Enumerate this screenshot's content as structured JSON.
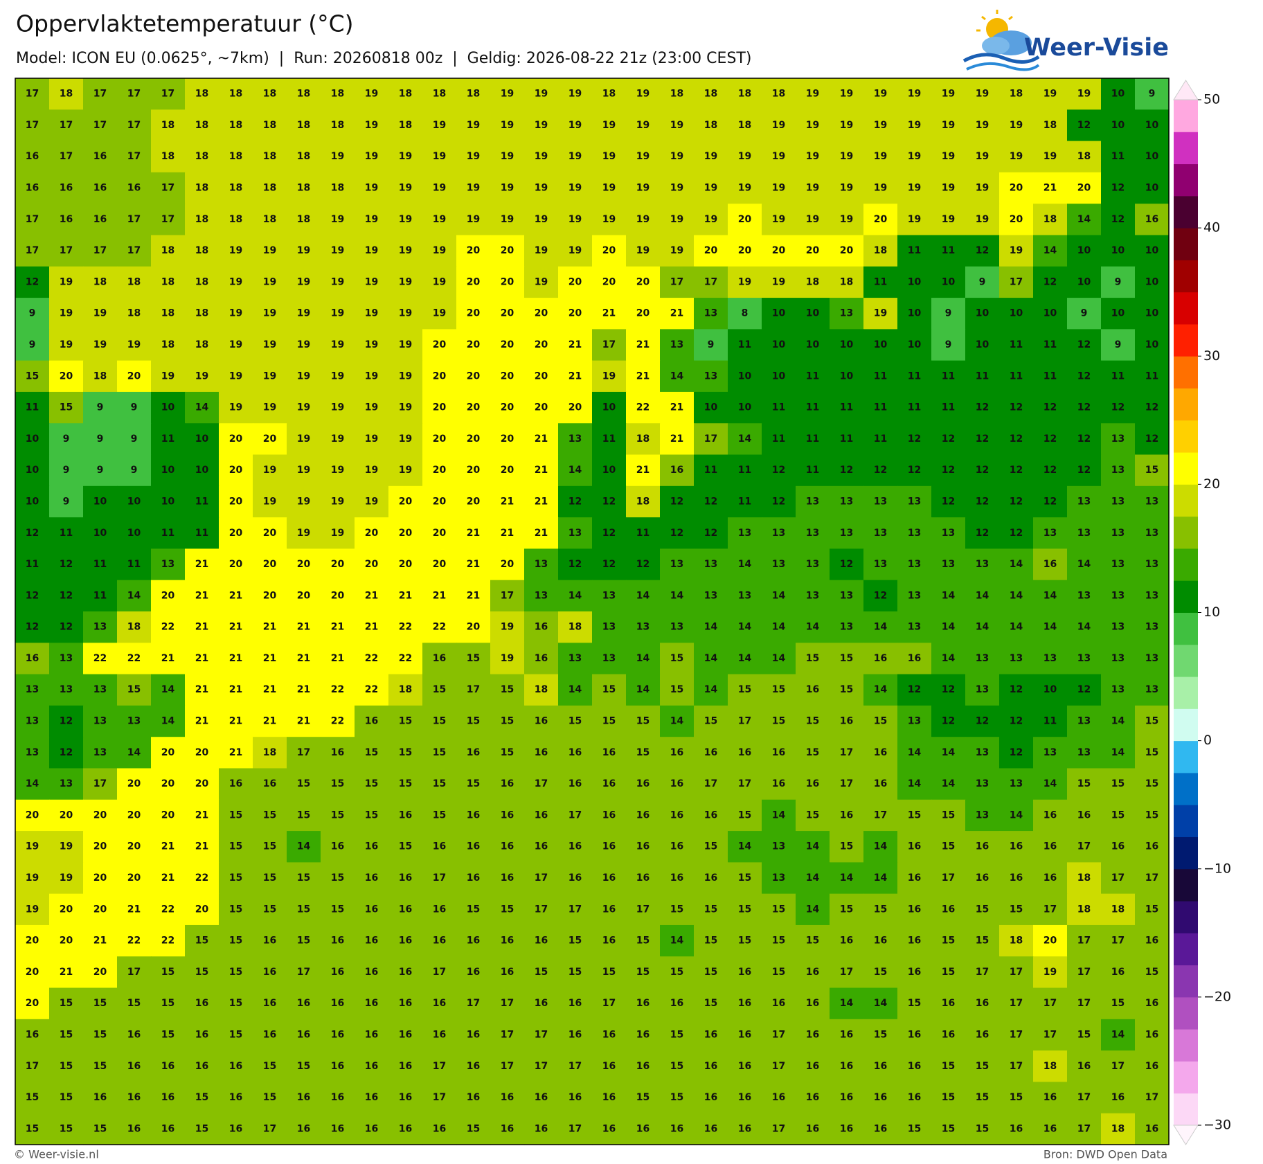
{
  "header": {
    "title": "Oppervlaktetemperatuur (°C)",
    "subtitle": "Model: ICON EU (0.0625°, ~7km)  |  Run: 20260818 00z  |  Geldig: 2026-08-22 21z (23:00 CEST)"
  },
  "logo": "Weer-Visie",
  "map": {
    "grid": [
      [
        17,
        18,
        17,
        17,
        17,
        18,
        18,
        18,
        18,
        18,
        19,
        18,
        18,
        18,
        19,
        19,
        19,
        18,
        19,
        18,
        18,
        18,
        18,
        19,
        19,
        19,
        19,
        19,
        19,
        18,
        19,
        19,
        10,
        9
      ],
      [
        17,
        17,
        17,
        17,
        18,
        18,
        18,
        18,
        18,
        18,
        19,
        18,
        19,
        19,
        19,
        19,
        19,
        19,
        19,
        19,
        18,
        18,
        19,
        19,
        19,
        19,
        19,
        19,
        19,
        19,
        18,
        12,
        10,
        10
      ],
      [
        16,
        17,
        16,
        17,
        18,
        18,
        18,
        18,
        18,
        19,
        19,
        19,
        19,
        19,
        19,
        19,
        19,
        19,
        19,
        19,
        19,
        19,
        19,
        19,
        19,
        19,
        19,
        19,
        19,
        19,
        19,
        18,
        11,
        10
      ],
      [
        16,
        16,
        16,
        16,
        17,
        18,
        18,
        18,
        18,
        18,
        19,
        19,
        19,
        19,
        19,
        19,
        19,
        19,
        19,
        19,
        19,
        19,
        19,
        19,
        19,
        19,
        19,
        19,
        19,
        20,
        21,
        20,
        12,
        10
      ],
      [
        17,
        16,
        16,
        17,
        17,
        18,
        18,
        18,
        18,
        19,
        19,
        19,
        19,
        19,
        19,
        19,
        19,
        19,
        19,
        19,
        19,
        20,
        19,
        19,
        19,
        20,
        19,
        19,
        19,
        20,
        18,
        14,
        12,
        16
      ],
      [
        17,
        17,
        17,
        17,
        18,
        18,
        19,
        19,
        19,
        19,
        19,
        19,
        19,
        20,
        20,
        19,
        19,
        20,
        19,
        19,
        20,
        20,
        20,
        20,
        20,
        18,
        11,
        11,
        12,
        19,
        14,
        10,
        10,
        10
      ],
      [
        12,
        19,
        18,
        18,
        18,
        18,
        19,
        19,
        19,
        19,
        19,
        19,
        19,
        20,
        20,
        19,
        20,
        20,
        20,
        17,
        17,
        19,
        19,
        18,
        18,
        11,
        10,
        10,
        9,
        17,
        12,
        10,
        9,
        10
      ],
      [
        9,
        19,
        19,
        18,
        18,
        18,
        19,
        19,
        19,
        19,
        19,
        19,
        19,
        20,
        20,
        20,
        20,
        21,
        20,
        21,
        13,
        8,
        10,
        10,
        13,
        19,
        10,
        9,
        10,
        10,
        10,
        9,
        10,
        10
      ],
      [
        9,
        19,
        19,
        19,
        18,
        18,
        19,
        19,
        19,
        19,
        19,
        19,
        20,
        20,
        20,
        20,
        21,
        17,
        21,
        13,
        9,
        11,
        10,
        10,
        10,
        10,
        10,
        9,
        10,
        11,
        11,
        12,
        9,
        10
      ],
      [
        15,
        20,
        18,
        20,
        19,
        19,
        19,
        19,
        19,
        19,
        19,
        19,
        20,
        20,
        20,
        20,
        21,
        19,
        21,
        14,
        13,
        10,
        10,
        11,
        10,
        11,
        11,
        11,
        11,
        11,
        11,
        12,
        11,
        11
      ],
      [
        11,
        15,
        9,
        9,
        10,
        14,
        19,
        19,
        19,
        19,
        19,
        19,
        20,
        20,
        20,
        20,
        20,
        10,
        22,
        21,
        10,
        10,
        11,
        11,
        11,
        11,
        11,
        11,
        12,
        12,
        12,
        12,
        12,
        12
      ],
      [
        10,
        9,
        9,
        9,
        11,
        10,
        20,
        20,
        19,
        19,
        19,
        19,
        20,
        20,
        20,
        21,
        13,
        11,
        18,
        21,
        17,
        14,
        11,
        11,
        11,
        11,
        12,
        12,
        12,
        12,
        12,
        12,
        13,
        12
      ],
      [
        10,
        9,
        9,
        9,
        10,
        10,
        20,
        19,
        19,
        19,
        19,
        19,
        20,
        20,
        20,
        21,
        14,
        10,
        21,
        16,
        11,
        11,
        12,
        11,
        12,
        12,
        12,
        12,
        12,
        12,
        12,
        12,
        13,
        15
      ],
      [
        10,
        9,
        10,
        10,
        10,
        11,
        20,
        19,
        19,
        19,
        19,
        20,
        20,
        20,
        21,
        21,
        12,
        12,
        18,
        12,
        12,
        11,
        12,
        13,
        13,
        13,
        13,
        12,
        12,
        12,
        12,
        13,
        13,
        13
      ],
      [
        12,
        11,
        10,
        10,
        11,
        11,
        20,
        20,
        19,
        19,
        20,
        20,
        20,
        21,
        21,
        21,
        13,
        12,
        11,
        12,
        12,
        13,
        13,
        13,
        13,
        13,
        13,
        13,
        12,
        12,
        13,
        13,
        13,
        13
      ],
      [
        11,
        12,
        11,
        11,
        13,
        21,
        20,
        20,
        20,
        20,
        20,
        20,
        20,
        21,
        20,
        13,
        12,
        12,
        12,
        13,
        13,
        14,
        13,
        13,
        12,
        13,
        13,
        13,
        13,
        14,
        16,
        14,
        13,
        13
      ],
      [
        12,
        12,
        11,
        14,
        20,
        21,
        21,
        20,
        20,
        20,
        21,
        21,
        21,
        21,
        17,
        13,
        14,
        13,
        14,
        14,
        13,
        13,
        14,
        13,
        13,
        12,
        13,
        14,
        14,
        14,
        14,
        13,
        13,
        13
      ],
      [
        12,
        12,
        13,
        18,
        22,
        21,
        21,
        21,
        21,
        21,
        21,
        22,
        22,
        20,
        19,
        16,
        18,
        13,
        13,
        13,
        14,
        14,
        14,
        14,
        13,
        14,
        13,
        14,
        14,
        14,
        14,
        14,
        13,
        13
      ],
      [
        16,
        13,
        22,
        22,
        21,
        21,
        21,
        21,
        21,
        21,
        22,
        22,
        16,
        15,
        19,
        16,
        13,
        13,
        14,
        15,
        14,
        14,
        14,
        15,
        15,
        16,
        16,
        14,
        13,
        13,
        13,
        13,
        13,
        13
      ],
      [
        13,
        13,
        13,
        15,
        14,
        21,
        21,
        21,
        21,
        22,
        22,
        18,
        15,
        17,
        15,
        18,
        14,
        15,
        14,
        15,
        14,
        15,
        15,
        16,
        15,
        14,
        12,
        12,
        13,
        12,
        10,
        12,
        13,
        13
      ],
      [
        13,
        12,
        13,
        13,
        14,
        21,
        21,
        21,
        21,
        22,
        16,
        15,
        15,
        15,
        15,
        16,
        15,
        15,
        15,
        14,
        15,
        17,
        15,
        15,
        16,
        15,
        13,
        12,
        12,
        12,
        11,
        13,
        14,
        15
      ],
      [
        13,
        12,
        13,
        14,
        20,
        20,
        21,
        18,
        17,
        16,
        15,
        15,
        15,
        16,
        15,
        16,
        16,
        16,
        15,
        16,
        16,
        16,
        16,
        15,
        17,
        16,
        14,
        14,
        13,
        12,
        13,
        13,
        14,
        15
      ],
      [
        14,
        13,
        17,
        20,
        20,
        20,
        16,
        16,
        15,
        15,
        15,
        15,
        15,
        15,
        16,
        17,
        16,
        16,
        16,
        16,
        17,
        17,
        16,
        16,
        17,
        16,
        14,
        14,
        13,
        13,
        14,
        15,
        15,
        15
      ],
      [
        20,
        20,
        20,
        20,
        20,
        21,
        15,
        15,
        15,
        15,
        15,
        16,
        15,
        16,
        16,
        16,
        17,
        16,
        16,
        16,
        16,
        15,
        14,
        15,
        16,
        17,
        15,
        15,
        13,
        14,
        16,
        16,
        15,
        15
      ],
      [
        19,
        19,
        20,
        20,
        21,
        21,
        15,
        15,
        14,
        16,
        16,
        15,
        16,
        16,
        16,
        16,
        16,
        16,
        16,
        16,
        15,
        14,
        13,
        14,
        15,
        14,
        16,
        15,
        16,
        16,
        16,
        17,
        16,
        16
      ],
      [
        19,
        19,
        20,
        20,
        21,
        22,
        15,
        15,
        15,
        15,
        16,
        16,
        17,
        16,
        16,
        17,
        16,
        16,
        16,
        16,
        16,
        15,
        13,
        14,
        14,
        14,
        16,
        17,
        16,
        16,
        16,
        18,
        17,
        17
      ],
      [
        19,
        20,
        20,
        21,
        22,
        20,
        15,
        15,
        15,
        15,
        16,
        16,
        16,
        15,
        15,
        17,
        17,
        16,
        17,
        15,
        15,
        15,
        15,
        14,
        15,
        15,
        16,
        16,
        15,
        15,
        17,
        18,
        18,
        15
      ],
      [
        20,
        20,
        21,
        22,
        22,
        15,
        15,
        16,
        15,
        16,
        16,
        16,
        16,
        16,
        16,
        16,
        15,
        16,
        15,
        14,
        15,
        15,
        15,
        15,
        16,
        16,
        16,
        15,
        15,
        18,
        20,
        17,
        17,
        16
      ],
      [
        20,
        21,
        20,
        17,
        15,
        15,
        15,
        16,
        17,
        16,
        16,
        16,
        17,
        16,
        16,
        15,
        15,
        15,
        15,
        15,
        15,
        16,
        15,
        16,
        17,
        15,
        16,
        15,
        17,
        17,
        19,
        17,
        16,
        15
      ],
      [
        20,
        15,
        15,
        15,
        15,
        16,
        15,
        16,
        16,
        16,
        16,
        16,
        16,
        17,
        17,
        16,
        16,
        17,
        16,
        16,
        15,
        16,
        16,
        16,
        14,
        14,
        15,
        16,
        16,
        17,
        17,
        17,
        15,
        16
      ],
      [
        16,
        15,
        15,
        16,
        15,
        16,
        15,
        16,
        16,
        16,
        16,
        16,
        16,
        16,
        17,
        17,
        16,
        16,
        16,
        15,
        16,
        16,
        17,
        16,
        16,
        15,
        16,
        16,
        16,
        17,
        17,
        15,
        14,
        16
      ],
      [
        17,
        15,
        15,
        16,
        16,
        16,
        16,
        15,
        15,
        16,
        16,
        16,
        17,
        16,
        17,
        17,
        17,
        16,
        16,
        15,
        16,
        16,
        17,
        16,
        16,
        16,
        16,
        15,
        15,
        17,
        18,
        16,
        17,
        16
      ],
      [
        15,
        15,
        16,
        16,
        16,
        15,
        16,
        15,
        16,
        16,
        16,
        16,
        17,
        16,
        16,
        16,
        16,
        16,
        15,
        15,
        16,
        16,
        16,
        16,
        16,
        16,
        16,
        15,
        15,
        15,
        16,
        17,
        16,
        17
      ],
      [
        15,
        15,
        15,
        16,
        16,
        15,
        16,
        17,
        16,
        16,
        16,
        16,
        16,
        15,
        16,
        16,
        17,
        16,
        16,
        16,
        16,
        16,
        17,
        16,
        16,
        16,
        15,
        15,
        15,
        16,
        16,
        17,
        18,
        16
      ]
    ]
  },
  "colorbar": {
    "lim": [
      -30,
      50
    ],
    "ticks": [
      {
        "value": -30,
        "label": "−30"
      },
      {
        "value": -20,
        "label": "−20"
      },
      {
        "value": -10,
        "label": "−10"
      },
      0,
      10,
      20,
      30,
      40,
      50
    ],
    "colors": [
      "#fcd8f6",
      "#f4a8ec",
      "#d878d8",
      "#b050c0",
      "#8a36b0",
      "#5a1898",
      "#300a70",
      "#180838",
      "#001a70",
      "#0040a8",
      "#0070c8",
      "#30b8f0",
      "#d0fcf0",
      "#a8f0a8",
      "#70d870",
      "#40c040",
      "#008c00",
      "#3aaa00",
      "#88c000",
      "#ccdc00",
      "#ffff00",
      "#ffd000",
      "#ffa800",
      "#ff7000",
      "#ff2000",
      "#d80000",
      "#a00000",
      "#700010",
      "#4a0030",
      "#900070",
      "#d030c0",
      "#ffa8e0"
    ]
  },
  "footer": {
    "left": "© Weer-visie.nl",
    "right": "Bron: DWD Open Data"
  }
}
